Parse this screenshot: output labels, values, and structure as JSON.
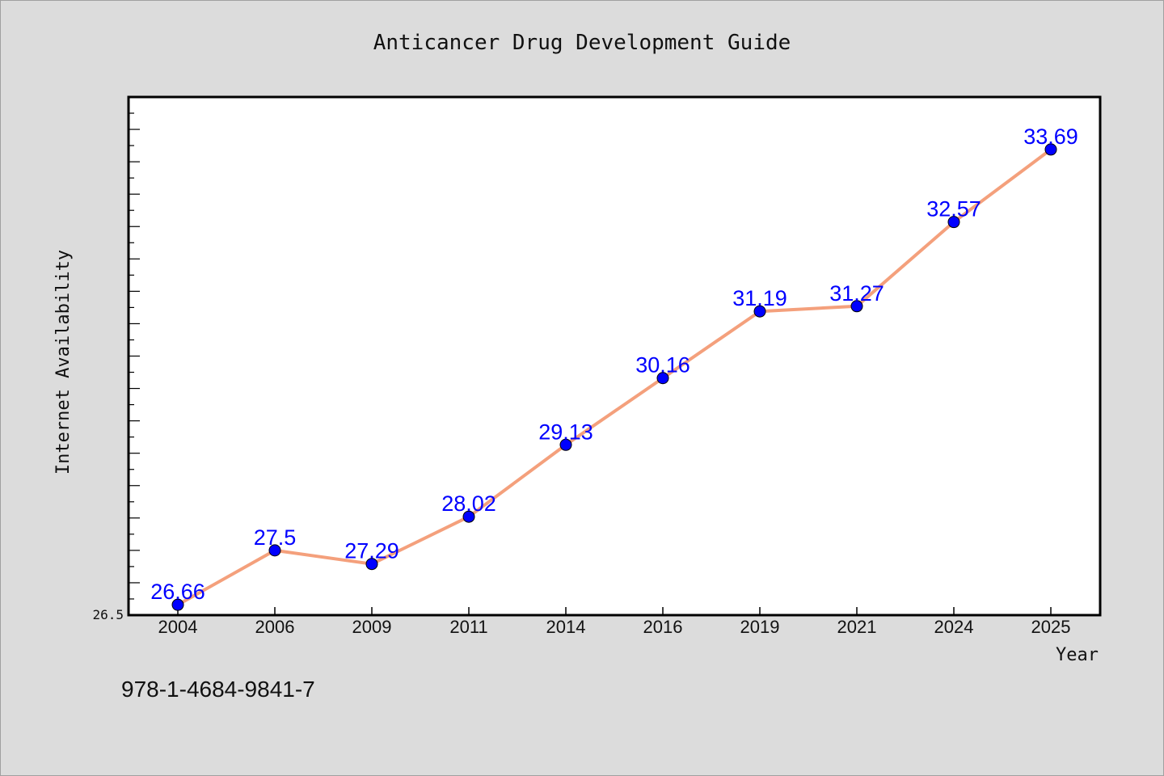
{
  "chart_data": {
    "type": "line",
    "title": "Anticancer Drug Development Guide",
    "xlabel": "Year",
    "ylabel": "Internet Availability",
    "categories": [
      "2004",
      "2006",
      "2009",
      "2011",
      "2014",
      "2016",
      "2019",
      "2021",
      "2024",
      "2025"
    ],
    "series": [
      {
        "name": "",
        "values": [
          26.66,
          27.5,
          27.29,
          28.02,
          29.13,
          30.16,
          31.19,
          31.27,
          32.57,
          33.69
        ],
        "labels": [
          "26.66",
          "27.5",
          "27.29",
          "28.02",
          "29.13",
          "30.16",
          "31.19",
          "31.27",
          "32.57",
          "33.69"
        ]
      }
    ],
    "ylim": [
      26.5,
      34.5
    ],
    "yticks_labeled": [
      "26.5"
    ],
    "grid": false,
    "colors": {
      "line": "#f4a07c",
      "marker": "#0000ff",
      "label": "#0000ff",
      "background": "#dcdcdc",
      "plot_bg": "#ffffff"
    }
  },
  "footer": {
    "isbn": "978-1-4684-9841-7"
  }
}
